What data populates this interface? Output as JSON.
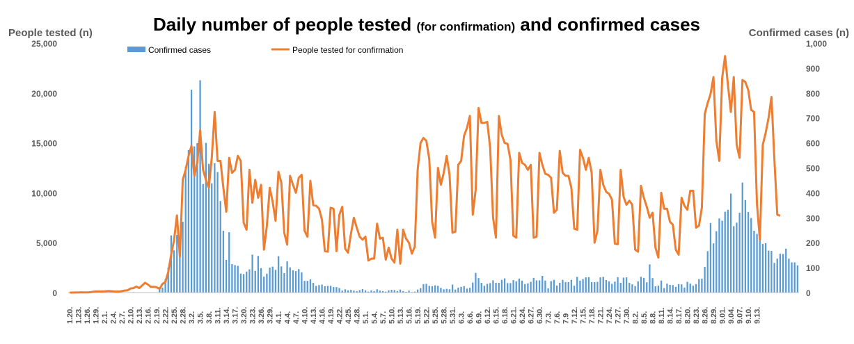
{
  "chart_data": {
    "type": "bar+line",
    "title": {
      "main_before": "Daily number of people tested ",
      "main_paren": "(for confirmation)",
      "main_after": " and confirmed cases"
    },
    "y_left_label": "People tested (n)",
    "y_right_label": "Confirmed cases (n)",
    "y_left_ticks": [
      "0",
      "5,000",
      "10,000",
      "15,000",
      "20,000",
      "25,000"
    ],
    "y_right_ticks": [
      "0",
      "100",
      "200",
      "300",
      "400",
      "500",
      "600",
      "700",
      "800",
      "900",
      "1,000"
    ],
    "y_left_range": [
      0,
      25000
    ],
    "y_right_range": [
      0,
      1000
    ],
    "legend_position": "top-left, inside plot",
    "x_tick_labels": [
      "1.20.",
      "1.23.",
      "1.26.",
      "1.29.",
      "2.1.",
      "2.4.",
      "2.7.",
      "2.10.",
      "2.13.",
      "2.16.",
      "2.19.",
      "2.22.",
      "2.25.",
      "2.28.",
      "3.2.",
      "3.5.",
      "3.8.",
      "3.11.",
      "3.14.",
      "3.17.",
      "3.20.",
      "3.23.",
      "3.26.",
      "3.29.",
      "4.1.",
      "4.4.",
      "4.7.",
      "4.10.",
      "4.13.",
      "4.16.",
      "4.19.",
      "4.22.",
      "4.25.",
      "4.28.",
      "5.1.",
      "5.4.",
      "5.7.",
      "5.10.",
      "5.13.",
      "5.16.",
      "5.19.",
      "5.22.",
      "5.25.",
      "5.28.",
      "5.31.",
      "6.3.",
      "6.6.",
      "6.9.",
      "6.12.",
      "6.15.",
      "6.18.",
      "6.21.",
      "6.24.",
      "6.27.",
      "6.30.",
      "7.3.",
      "7.6.",
      "7.9",
      "7.12.",
      "7.15.",
      "7.18.",
      "7.21.",
      "7.24.",
      "7.27.",
      "7.30.",
      "8.2.",
      "8.5.",
      "8.8.",
      "8.11.",
      "8.14.",
      "8.17.",
      "8.20.",
      "8.23.",
      "8.26.",
      "8.29.",
      "9.01.",
      "9.04.",
      "9.07.",
      "9.10.",
      "9.13."
    ],
    "series": [
      {
        "name": "Confirmed cases",
        "type": "bar",
        "axis": "right",
        "color": "#5b9bd5",
        "values": [
          1,
          0,
          0,
          1,
          0,
          0,
          0,
          0,
          0,
          0,
          0,
          0,
          2,
          1,
          3,
          1,
          0,
          0,
          0,
          0,
          0,
          1,
          2,
          0,
          0,
          0,
          0,
          0,
          0,
          0,
          0,
          16,
          20,
          53,
          100,
          229,
          169,
          231,
          144,
          284,
          505,
          571,
          813,
          586,
          599,
          851,
          435,
          600,
          516,
          438,
          518,
          483,
          367,
          248,
          131,
          242,
          114,
          110,
          107,
          76,
          74,
          84,
          93,
          152,
          87,
          147,
          98,
          64,
          76,
          100,
          104,
          91,
          146,
          105,
          78,
          125,
          101,
          89,
          86,
          94,
          81,
          47,
          47,
          53,
          39,
          27,
          30,
          32,
          25,
          27,
          27,
          22,
          22,
          18,
          8,
          13,
          9,
          11,
          8,
          6,
          10,
          14,
          9,
          4,
          9,
          6,
          13,
          8,
          6,
          4,
          9,
          11,
          10,
          6,
          12,
          6,
          3,
          8,
          2,
          4,
          12,
          18,
          34,
          35,
          27,
          26,
          29,
          27,
          19,
          13,
          15,
          13,
          32,
          12,
          20,
          23,
          25,
          16,
          19,
          40,
          79,
          58,
          39,
          27,
          35,
          38,
          49,
          39,
          39,
          51,
          57,
          38,
          38,
          50,
          45,
          56,
          48,
          34,
          37,
          43,
          59,
          49,
          49,
          67,
          48,
          17,
          46,
          51,
          28,
          39,
          51,
          42,
          42,
          51,
          28,
          63,
          48,
          54,
          61,
          62,
          42,
          42,
          43,
          61,
          63,
          50,
          45,
          35,
          44,
          62,
          39,
          60,
          61,
          39,
          33,
          26,
          45,
          63,
          59,
          41,
          113,
          58,
          25,
          28,
          48,
          18,
          36,
          31,
          30,
          23,
          34,
          33,
          20,
          43,
          36,
          28,
          34,
          54,
          56,
          103,
          166,
          279,
          197,
          246,
          297,
          288,
          324,
          332,
          397,
          266,
          280,
          320,
          441,
          371,
          323,
          299,
          248,
          235,
          267,
          195,
          198,
          168,
          167,
          119,
          136,
          156,
          155,
          176,
          136,
          121,
          121,
          109
        ]
      },
      {
        "name": "People tested for confirmation",
        "type": "line",
        "axis": "left",
        "color": "#ed7d31",
        "values": [
          4,
          4,
          8,
          10,
          30,
          20,
          20,
          25,
          80,
          115,
          115,
          115,
          120,
          150,
          145,
          120,
          100,
          100,
          150,
          200,
          230,
          410,
          445,
          605,
          450,
          710,
          985,
          800,
          570,
          580,
          530,
          375,
          865,
          1060,
          2080,
          3790,
          5270,
          7735,
          3600,
          11300,
          12300,
          13700,
          14700,
          11700,
          13000,
          16250,
          12300,
          11300,
          10500,
          13500,
          18100,
          13200,
          13200,
          10500,
          8100,
          13500,
          12000,
          12300,
          13700,
          13200,
          7000,
          6300,
          12300,
          9000,
          11300,
          9500,
          10800,
          4300,
          6700,
          10500,
          9100,
          7200,
          12100,
          11000,
          6000,
          4800,
          11700,
          10800,
          10000,
          11500,
          11800,
          6200,
          5600,
          11200,
          8750,
          8700,
          8400,
          7300,
          4150,
          4100,
          8500,
          8400,
          4150,
          7800,
          8600,
          4400,
          4000,
          5900,
          7500,
          6500,
          5600,
          5300,
          5600,
          3200,
          3400,
          3400,
          6900,
          5400,
          5500,
          3300,
          4500,
          3400,
          3000,
          6300,
          2900,
          6300,
          5400,
          5000,
          3900,
          4600,
          12300,
          15000,
          15500,
          15200,
          13400,
          7100,
          5500,
          12500,
          10800,
          12000,
          13700,
          11800,
          6000,
          6100,
          12800,
          13200,
          15700,
          16500,
          17700,
          7800,
          10300,
          18500,
          17000,
          17000,
          17100,
          14500,
          7500,
          5500,
          17700,
          15800,
          15000,
          14900,
          13300,
          5700,
          5500,
          14000,
          13000,
          12800,
          12300,
          12800,
          5500,
          5600,
          14000,
          12800,
          11900,
          11800,
          11500,
          8000,
          8300,
          14200,
          12000,
          11700,
          11700,
          10500,
          6400,
          6300,
          14300,
          13500,
          12300,
          13500,
          12000,
          5000,
          6200,
          12300,
          10800,
          10100,
          9900,
          9300,
          4900,
          4850,
          12300,
          9600,
          8800,
          9200,
          8800,
          4300,
          4100,
          10700,
          9500,
          8600,
          7500,
          8000,
          4500,
          3500,
          10000,
          8400,
          8400,
          7100,
          6800,
          4300,
          3800,
          9500,
          8700,
          8300,
          10200,
          10200,
          6500,
          6700,
          8500,
          17900,
          19000,
          19900,
          21600,
          15200,
          13200,
          21500,
          23700,
          20800,
          18100,
          21600,
          14800,
          13500,
          21300,
          21100,
          20300,
          18300,
          18100,
          8900,
          5300,
          14800,
          16000,
          17500,
          19600,
          13400,
          7800,
          7700
        ]
      }
    ]
  }
}
